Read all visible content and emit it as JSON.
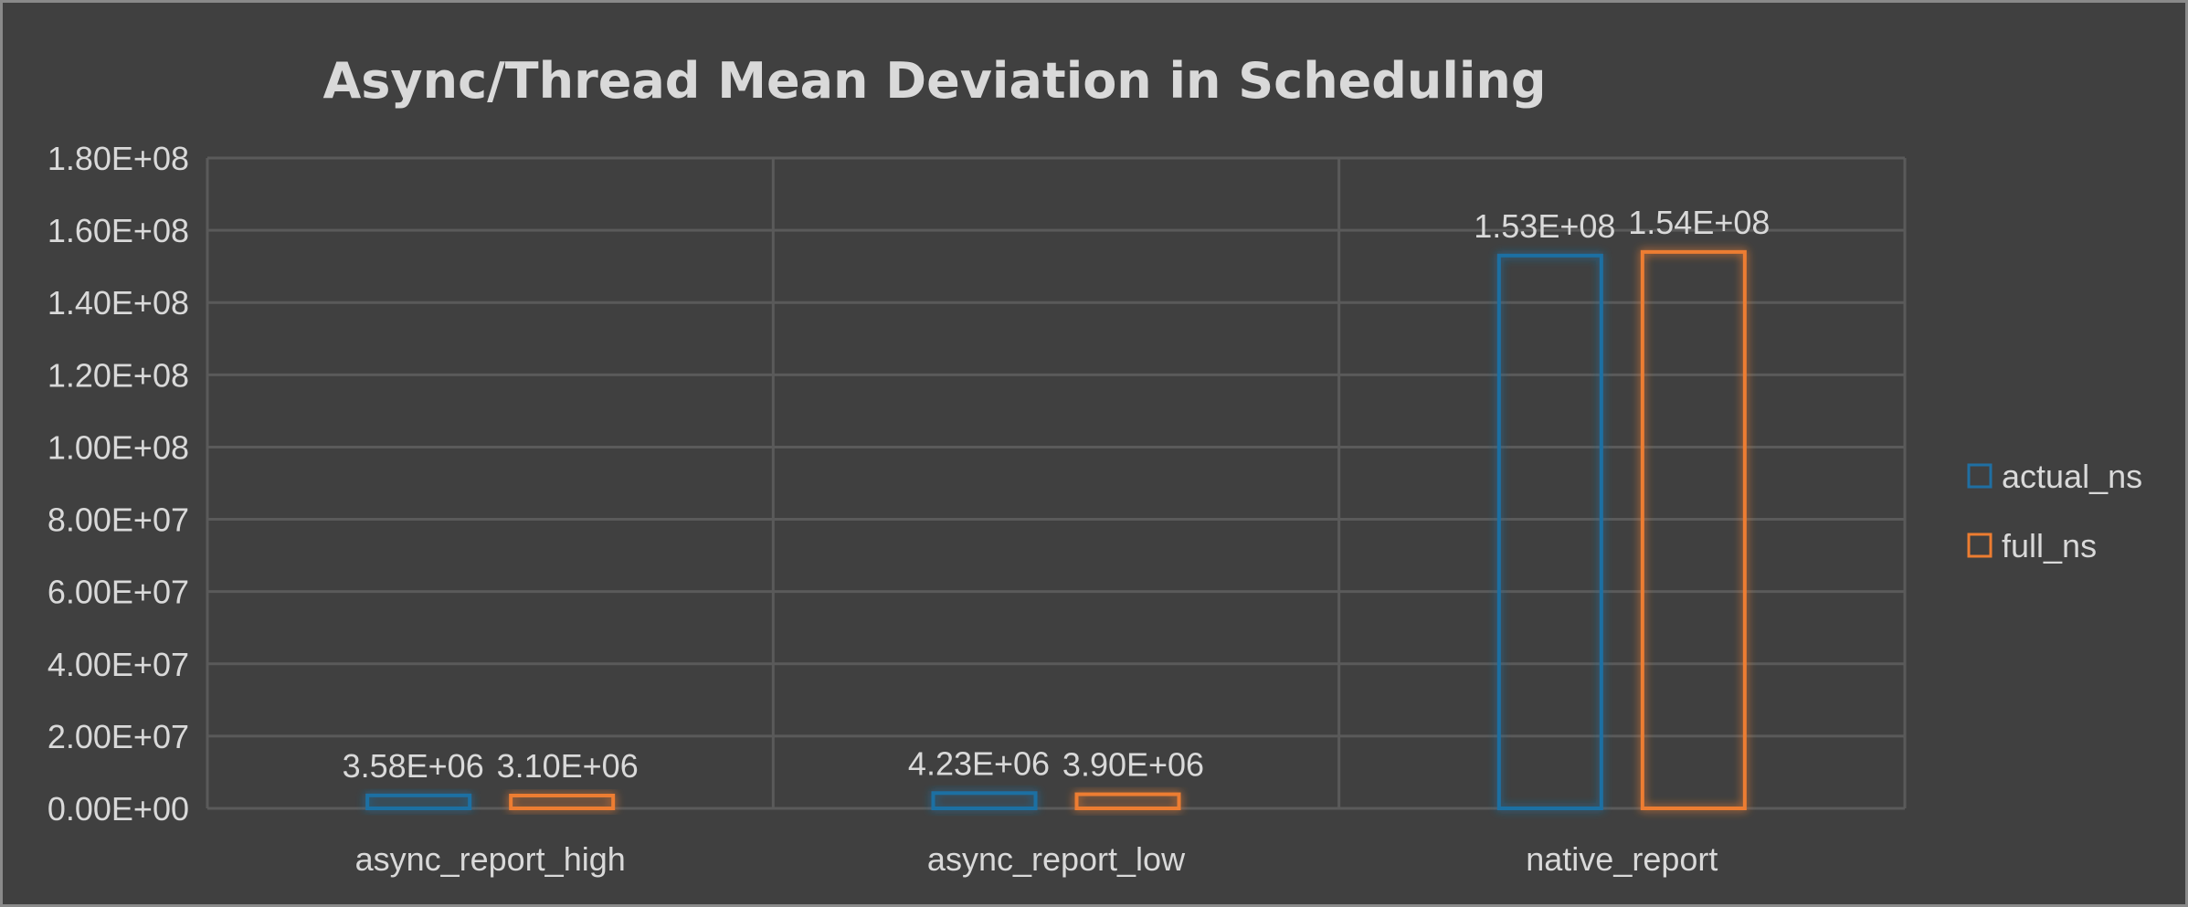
{
  "chart_data": {
    "type": "bar",
    "title": "Async/Thread Mean Deviation in Scheduling",
    "categories": [
      "async_report_high",
      "async_report_low",
      "native_report"
    ],
    "series": [
      {
        "name": "actual_ns",
        "color": "#1f6fa3",
        "values": [
          3580000,
          4230000,
          153000000
        ],
        "labels": [
          "3.58E+06",
          "4.23E+06",
          "1.53E+08"
        ]
      },
      {
        "name": "full_ns",
        "color": "#ed7d31",
        "values": [
          3100000,
          3900000,
          154000000
        ],
        "labels": [
          "3.10E+06",
          "3.90E+06",
          "1.54E+08"
        ]
      }
    ],
    "ylim": [
      0,
      180000000
    ],
    "yticks": [
      0,
      20000000,
      40000000,
      60000000,
      80000000,
      100000000,
      120000000,
      140000000,
      160000000,
      180000000
    ],
    "ytick_labels": [
      "0.00E+00",
      "2.00E+07",
      "4.00E+07",
      "6.00E+07",
      "8.00E+07",
      "1.00E+08",
      "1.20E+08",
      "1.40E+08",
      "1.60E+08",
      "1.80E+08"
    ],
    "xlabel": "",
    "ylabel": "",
    "grid": true,
    "legend_position": "right"
  },
  "colors": {
    "background": "#404040",
    "text": "#d9d9d9",
    "grid": "#5a5a5a"
  }
}
